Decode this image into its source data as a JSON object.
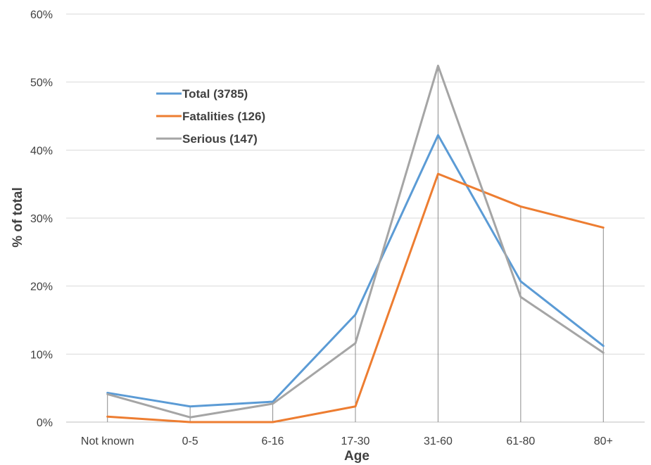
{
  "chart_data": {
    "type": "line",
    "xlabel": "Age",
    "ylabel": "% of total",
    "categories": [
      "Not known",
      "0-5",
      "6-16",
      "17-30",
      "31-60",
      "61-80",
      "80+"
    ],
    "y_ticks": [
      "0%",
      "10%",
      "20%",
      "30%",
      "40%",
      "50%",
      "60%"
    ],
    "ylim": [
      0,
      60
    ],
    "grid": "horizontal",
    "drop_lines": true,
    "legend_position": "upper-left inside plot",
    "series": [
      {
        "name": "Total (3785)",
        "color": "#5B9BD5",
        "values": [
          4.3,
          2.3,
          3.0,
          15.8,
          42.2,
          20.7,
          11.2
        ]
      },
      {
        "name": "Fatalities (126)",
        "color": "#ED7D31",
        "values": [
          0.8,
          0.0,
          0.0,
          2.3,
          36.5,
          31.7,
          28.6
        ]
      },
      {
        "name": "Serious (147)",
        "color": "#A5A5A5",
        "values": [
          4.1,
          0.7,
          2.7,
          11.6,
          52.4,
          18.4,
          10.2
        ]
      }
    ]
  }
}
